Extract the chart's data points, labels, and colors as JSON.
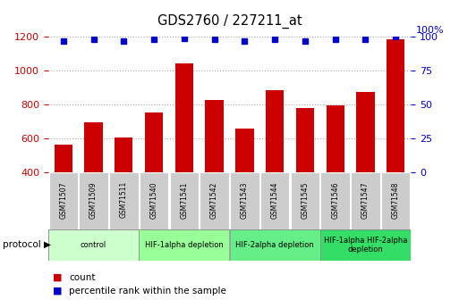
{
  "title": "GDS2760 / 227211_at",
  "samples": [
    "GSM71507",
    "GSM71509",
    "GSM71511",
    "GSM71540",
    "GSM71541",
    "GSM71542",
    "GSM71543",
    "GSM71544",
    "GSM71545",
    "GSM71546",
    "GSM71547",
    "GSM71548"
  ],
  "counts": [
    565,
    695,
    605,
    755,
    1045,
    830,
    660,
    885,
    780,
    795,
    875,
    1185
  ],
  "percentile_ranks": [
    97,
    98,
    97,
    98,
    99,
    98,
    97,
    98,
    97,
    98,
    98,
    100
  ],
  "ylim_left": [
    400,
    1200
  ],
  "ylim_right": [
    0,
    100
  ],
  "yticks_left": [
    400,
    600,
    800,
    1000,
    1200
  ],
  "yticks_right": [
    0,
    25,
    50,
    75,
    100
  ],
  "bar_color": "#cc0000",
  "dot_color": "#0000cc",
  "grid_color": "#aaaaaa",
  "protocol_groups": [
    {
      "label": "control",
      "start": 0,
      "end": 2,
      "color": "#ccffcc"
    },
    {
      "label": "HIF-1alpha depletion",
      "start": 3,
      "end": 5,
      "color": "#99ff99"
    },
    {
      "label": "HIF-2alpha depletion",
      "start": 6,
      "end": 8,
      "color": "#66ee88"
    },
    {
      "label": "HIF-1alpha HIF-2alpha\ndepletion",
      "start": 9,
      "end": 11,
      "color": "#33dd66"
    }
  ],
  "tick_bg_color": "#cccccc",
  "bar_color_legend": "#cc0000",
  "dot_color_legend": "#0000cc"
}
